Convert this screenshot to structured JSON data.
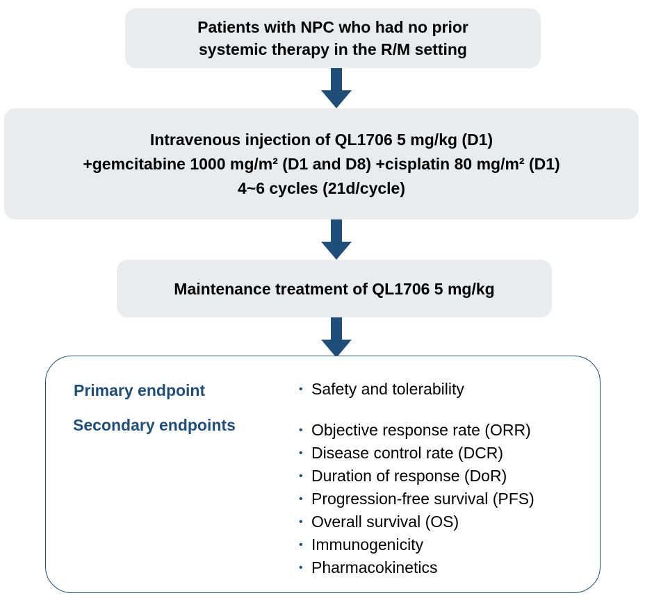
{
  "flow": {
    "patients": {
      "line1": "Patients with NPC who had no prior",
      "line2": "systemic therapy in the R/M setting"
    },
    "regimen": {
      "line1": "Intravenous injection of QL1706 5 mg/kg (D1)",
      "line2": "+gemcitabine 1000 mg/m² (D1 and D8) +cisplatin 80 mg/m² (D1)",
      "line3": "4~6 cycles (21d/cycle)"
    },
    "maintenance": {
      "line1": "Maintenance treatment of QL1706 5 mg/kg"
    }
  },
  "endpoints": {
    "primary_heading": "Primary endpoint",
    "primary_items": [
      "Safety and tolerability"
    ],
    "secondary_heading": "Secondary endpoints",
    "secondary_items": [
      "Objective response rate (ORR)",
      "Disease control rate (DCR)",
      "Duration of response (DoR)",
      "Progression-free survival (PFS)",
      "Overall survival (OS)",
      "Immunogenicity",
      "Pharmacokinetics"
    ]
  },
  "colors": {
    "box_fill": "#e9ecef",
    "arrow": "#1f4e79",
    "heading": "#1f4e79",
    "panel_border": "#1f4e79"
  },
  "icons": {
    "arrow": "arrow-down-icon",
    "bullet": "bullet-icon"
  }
}
